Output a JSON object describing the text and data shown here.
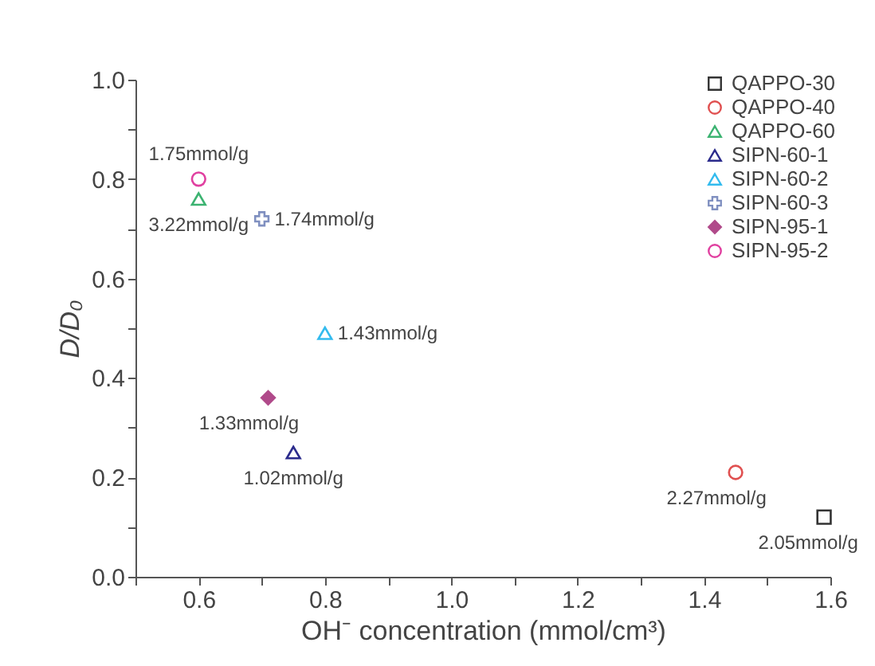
{
  "chart_data": {
    "type": "scatter",
    "xlabel": "OH⁻ concentration (mmol/cm³)",
    "ylabel": "D/D₀",
    "xlim": [
      0.5,
      1.6
    ],
    "ylim": [
      0,
      1.0
    ],
    "xticks": [
      {
        "value": 0.5,
        "label": null
      },
      0.6,
      {
        "value": 0.7,
        "label": null
      },
      0.8,
      {
        "value": 0.9,
        "label": null
      },
      {
        "value": 1,
        "label": "1.0"
      },
      {
        "value": 1.1,
        "label": null
      },
      1.2,
      {
        "value": 1.3,
        "label": null
      },
      1.4,
      {
        "value": 1.5,
        "label": null
      },
      1.6
    ],
    "yticks": [
      {
        "value": 0,
        "label": "0.0"
      },
      {
        "value": 0.1,
        "label": null
      },
      0.2,
      {
        "value": 0.3,
        "label": null
      },
      0.4,
      {
        "value": 0.5,
        "label": null
      },
      0.6,
      {
        "value": 0.7,
        "label": null
      },
      0.8,
      {
        "value": 0.9,
        "label": null
      },
      {
        "value": 1,
        "label": "1.0"
      }
    ],
    "grid": false,
    "legend": "top right",
    "series": [
      {
        "name": "QAPPO-30",
        "color": "#333333",
        "marker": "square",
        "x": [
          1.59
        ],
        "values": [
          0.12
        ]
      },
      {
        "name": "QAPPO-40",
        "color": "#e05050",
        "marker": "circle",
        "x": [
          1.45
        ],
        "values": [
          0.21
        ]
      },
      {
        "name": "QAPPO-60",
        "color": "#3cb371",
        "marker": "triangle",
        "x": [
          0.6
        ],
        "values": [
          0.76
        ]
      },
      {
        "name": "SIPN-60-1",
        "color": "#2b2b8c",
        "marker": "triangle",
        "x": [
          0.75
        ],
        "values": [
          0.25
        ]
      },
      {
        "name": "SIPN-60-2",
        "color": "#33bbee",
        "marker": "triangle",
        "x": [
          0.8
        ],
        "values": [
          0.49
        ]
      },
      {
        "name": "SIPN-60-3",
        "color": "#8090c0",
        "marker": "cross",
        "x": [
          0.7
        ],
        "values": [
          0.72
        ]
      },
      {
        "name": "SIPN-95-1",
        "color": "#b04a8a",
        "marker": "diamond",
        "x": [
          0.71
        ],
        "values": [
          0.36
        ]
      },
      {
        "name": "SIPN-95-2",
        "color": "#e040a0",
        "marker": "circle",
        "x": [
          0.6
        ],
        "values": [
          0.8
        ]
      }
    ],
    "annotations": [
      {
        "text": "2.05mmol/g",
        "x": 1.59,
        "y": 0.12
      },
      {
        "text": "2.27mmol/g",
        "x": 1.45,
        "y": 0.21
      },
      {
        "text": "3.22mmol/g",
        "x": 0.6,
        "y": 0.76
      },
      {
        "text": "1.02mmol/g",
        "x": 0.75,
        "y": 0.25
      },
      {
        "text": "1.43mmol/g",
        "x": 0.8,
        "y": 0.49
      },
      {
        "text": "1.74mmol/g",
        "x": 0.7,
        "y": 0.72
      },
      {
        "text": "1.33mmol/g",
        "x": 0.71,
        "y": 0.36
      },
      {
        "text": "1.75mmol/g",
        "x": 0.6,
        "y": 0.8
      }
    ]
  }
}
